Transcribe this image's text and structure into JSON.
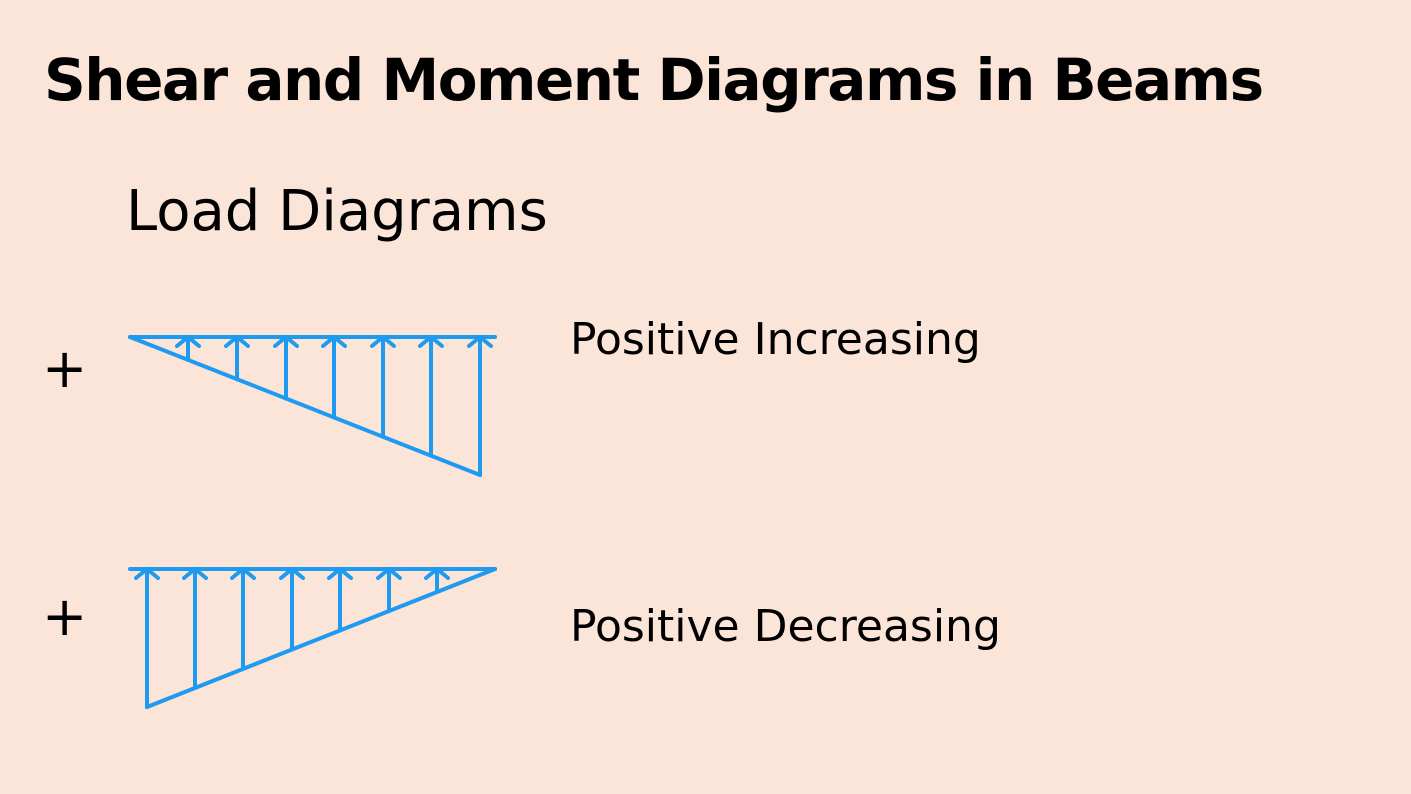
{
  "title": "Shear and Moment Diagrams in Beams",
  "subtitle": "Load Diagrams",
  "diagrams": [
    {
      "sign": "+",
      "label": "Positive Increasing",
      "load_shape": "triangular",
      "variation": "increasing",
      "arrow_direction": "up",
      "arrow_count": 7
    },
    {
      "sign": "+",
      "label": "Positive Decreasing",
      "load_shape": "triangular",
      "variation": "decreasing",
      "arrow_direction": "up",
      "arrow_count": 7
    }
  ],
  "colors": {
    "background": "#FBE5D9",
    "load_diagram": "#1E9BF0",
    "text": "#000000"
  }
}
